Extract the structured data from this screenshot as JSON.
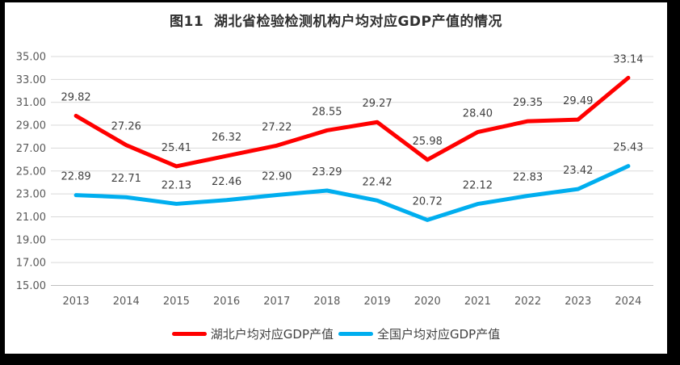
{
  "frame": {
    "border_color": "#000000",
    "canvas_color": "#ffffff"
  },
  "title": "图11  湖北省检验检测机构户均对应GDP产值的情况",
  "chart_data": {
    "type": "line",
    "title": "图11  湖北省检验检测机构户均对应GDP产值的情况",
    "categories": [
      "2013",
      "2014",
      "2015",
      "2016",
      "2017",
      "2018",
      "2019",
      "2020",
      "2021",
      "2022",
      "2023",
      "2024"
    ],
    "series": [
      {
        "name": "湖北户均对应GDP产值",
        "color": "#FF0000",
        "values": [
          29.82,
          27.26,
          25.41,
          26.32,
          27.22,
          28.55,
          29.27,
          25.98,
          28.4,
          29.35,
          29.49,
          33.14
        ]
      },
      {
        "name": "全国户均对应GDP产值",
        "color": "#00AEEF",
        "values": [
          22.89,
          22.71,
          22.13,
          22.46,
          22.9,
          23.29,
          22.42,
          20.72,
          22.12,
          22.83,
          23.42,
          25.43
        ]
      }
    ],
    "ylim": [
      15,
      35
    ],
    "yticks": [
      35,
      33,
      31,
      29,
      27,
      25,
      23,
      21,
      19,
      17,
      15
    ],
    "ytick_decimals": 2,
    "grid": true,
    "data_labels": true,
    "legend_position": "bottom",
    "axis_text_color": "#595959",
    "data_label_color": "#404040",
    "gridline_color": "#D9D9D9",
    "axis_line_color": "#BFBFBF"
  }
}
